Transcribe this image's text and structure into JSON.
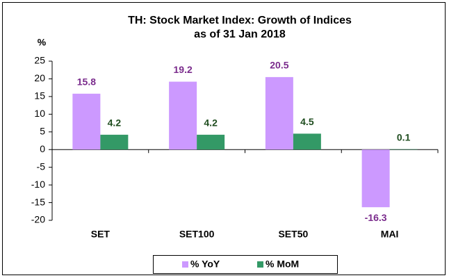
{
  "chart_data": {
    "type": "bar",
    "title": [
      "TH: Stock Market Index: Growth of Indices",
      "as of 31 Jan 2018"
    ],
    "y_label": "%",
    "categories": [
      "SET",
      "SET100",
      "SET50",
      "MAI"
    ],
    "series": [
      {
        "name": "% YoY",
        "color": "#cc99ff",
        "label_color": "#7a2b8c",
        "values": [
          15.8,
          19.2,
          20.5,
          -16.3
        ]
      },
      {
        "name": "% MoM",
        "color": "#339966",
        "label_color": "#1f4d1f",
        "values": [
          4.2,
          4.2,
          4.5,
          0.1
        ]
      }
    ],
    "ylim": [
      -20,
      25
    ],
    "yticks": [
      -20,
      -15,
      -10,
      -5,
      0,
      5,
      10,
      15,
      20,
      25
    ],
    "grid": false,
    "legend": "bottom"
  }
}
